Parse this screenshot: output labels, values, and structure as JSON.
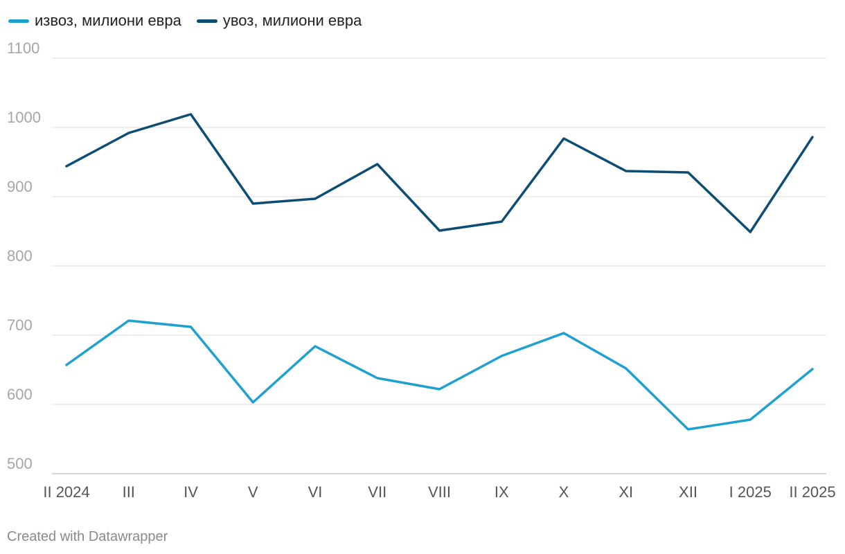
{
  "chart_data": {
    "type": "line",
    "categories": [
      "II 2024",
      "III",
      "IV",
      "V",
      "VI",
      "VII",
      "VIII",
      "IX",
      "X",
      "XI",
      "XII",
      "I 2025",
      "II 2025"
    ],
    "series": [
      {
        "name": "извоз, милиони евра",
        "color": "#1fa1cf",
        "values": [
          657,
          721,
          712,
          603,
          684,
          638,
          622,
          670,
          703,
          652,
          564,
          578,
          651
        ]
      },
      {
        "name": "увоз, милиони евра",
        "color": "#0d4d73",
        "values": [
          944,
          992,
          1019,
          890,
          897,
          947,
          851,
          864,
          984,
          937,
          935,
          849,
          986
        ]
      }
    ],
    "yticks": [
      1100,
      1000,
      900,
      800,
      700,
      600,
      500
    ],
    "ylim": [
      500,
      1100
    ],
    "grid": true,
    "legend_position": "top-left"
  },
  "footer": {
    "credit": "Created with Datawrapper"
  }
}
